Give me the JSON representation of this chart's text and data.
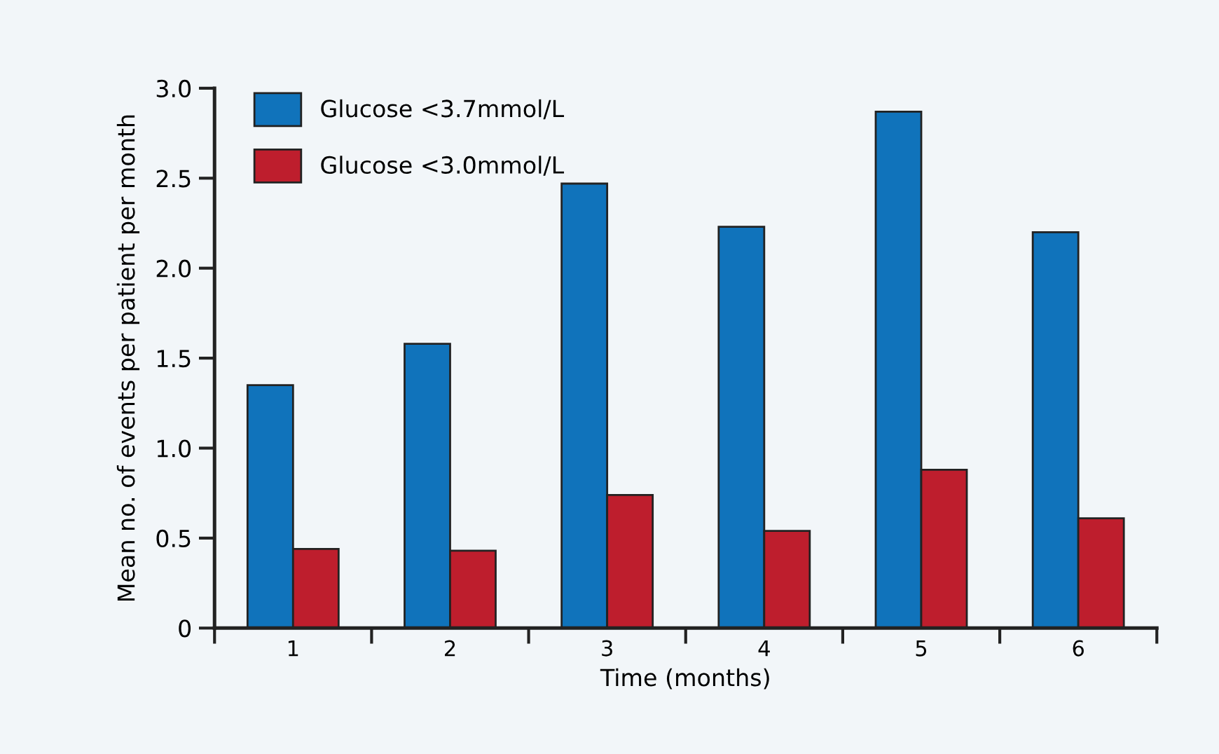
{
  "chart_data": {
    "type": "bar",
    "xlabel": "Time (months)",
    "ylabel": "Mean no. of events per patient per month",
    "categories": [
      "1",
      "2",
      "3",
      "4",
      "5",
      "6"
    ],
    "series": [
      {
        "name": "Glucose <3.7mmol/L",
        "color": "#1073bb",
        "values": [
          1.35,
          1.58,
          2.47,
          2.23,
          2.87,
          2.2
        ]
      },
      {
        "name": "Glucose <3.0mmol/L",
        "color": "#be1e2d",
        "values": [
          0.44,
          0.43,
          0.74,
          0.54,
          0.88,
          0.61
        ]
      }
    ],
    "ylim": [
      0,
      3.0
    ],
    "yticks": [
      {
        "value": 0,
        "label": "0"
      },
      {
        "value": 0.5,
        "label": "0.5"
      },
      {
        "value": 1.0,
        "label": "1.0"
      },
      {
        "value": 1.5,
        "label": "1.5"
      },
      {
        "value": 2.0,
        "label": "2.0"
      },
      {
        "value": 2.5,
        "label": "2.5"
      },
      {
        "value": 3.0,
        "label": "3.0"
      }
    ],
    "grid": false,
    "legend": "top left"
  }
}
